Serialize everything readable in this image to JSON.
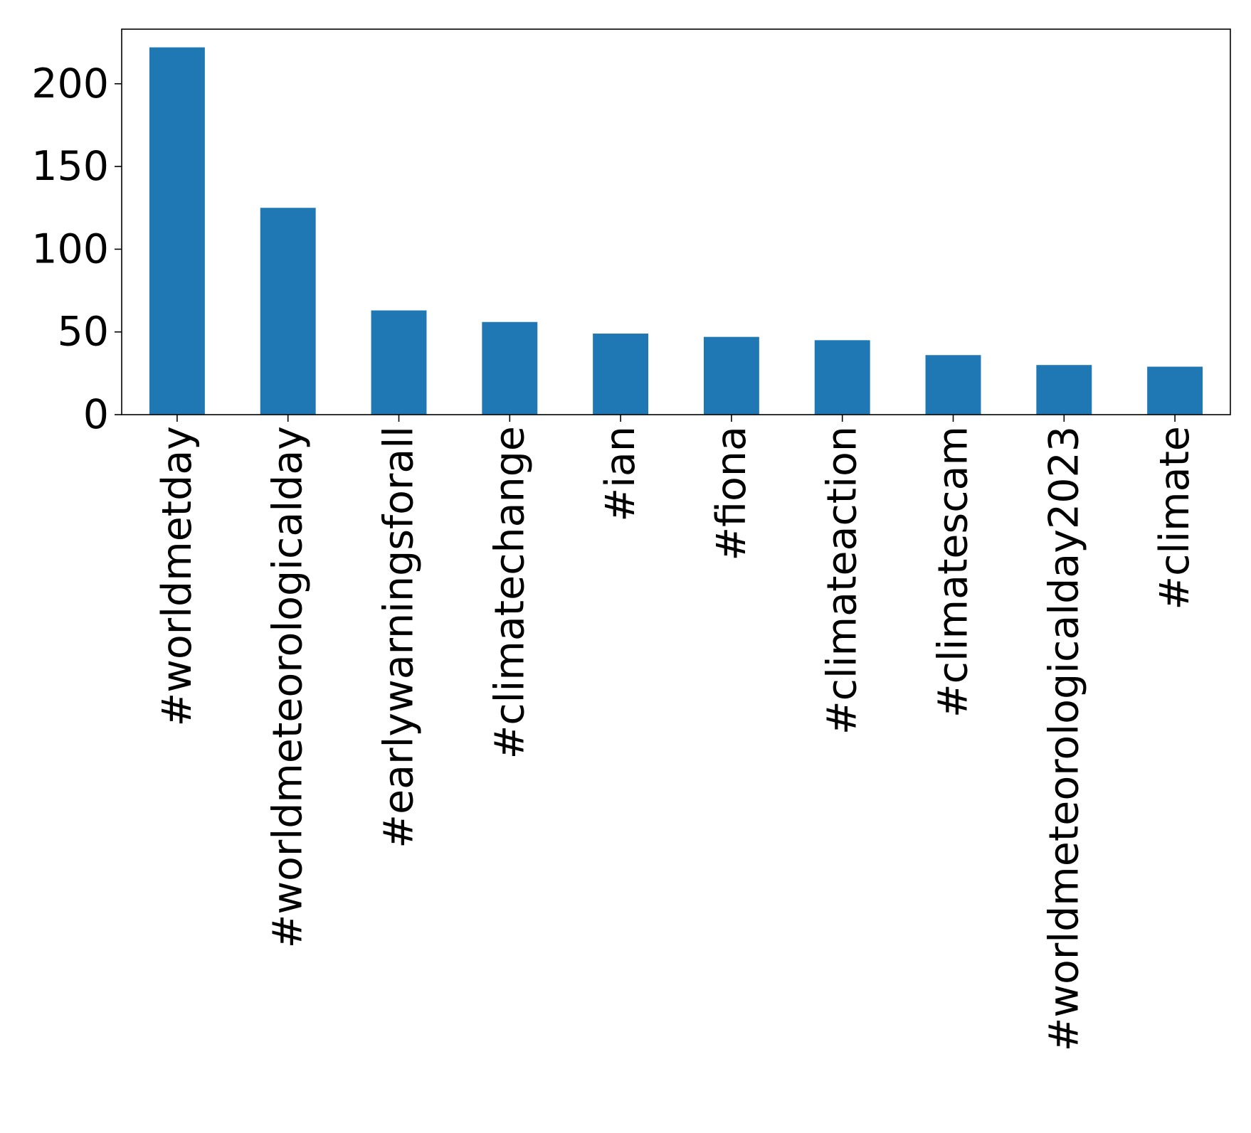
{
  "chart_data": {
    "type": "bar",
    "title": "",
    "xlabel": "",
    "ylabel": "",
    "categories": [
      "#worldmetday",
      "#worldmeteorologicalday",
      "#earlywarningsforall",
      "#climatechange",
      "#ian",
      "#fiona",
      "#climateaction",
      "#climatescam",
      "#worldmeteorologicalday2023",
      "#climate"
    ],
    "values": [
      222,
      125,
      63,
      56,
      49,
      47,
      45,
      36,
      30,
      29
    ],
    "ylim": [
      0,
      233
    ],
    "yticks": [
      0,
      50,
      100,
      150,
      200
    ],
    "ytick_labels": [
      "0",
      "50",
      "100",
      "150",
      "200"
    ],
    "bar_color": "#1f77b4",
    "grid": false,
    "legend": "none"
  }
}
